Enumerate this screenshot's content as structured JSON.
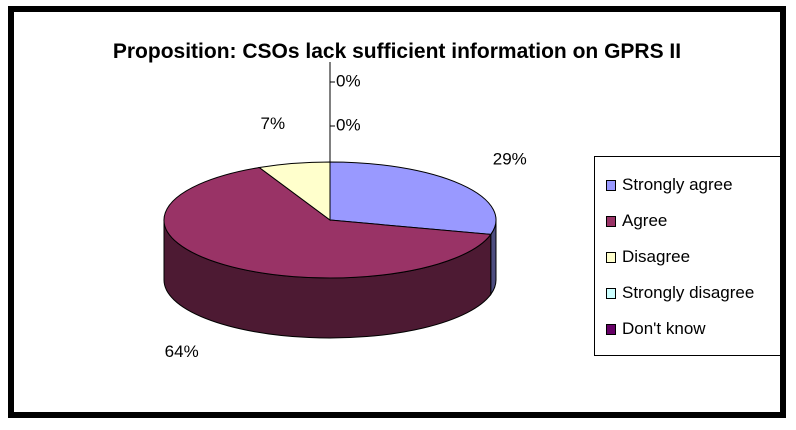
{
  "chart_data": {
    "type": "pie",
    "style": "3d-exploded-none",
    "title": "Proposition: CSOs lack sufficient information on GPRS II",
    "categories": [
      "Strongly agree",
      "Agree",
      "Disagree",
      "Strongly disagree",
      "Don't know"
    ],
    "values": [
      29,
      64,
      7,
      0,
      0
    ],
    "data_labels": [
      "29%",
      "64%",
      "7%",
      "0%",
      "0%"
    ],
    "colors": [
      "#9999ff",
      "#993366",
      "#ffffcc",
      "#ccffff",
      "#660066"
    ],
    "legend": "right"
  }
}
